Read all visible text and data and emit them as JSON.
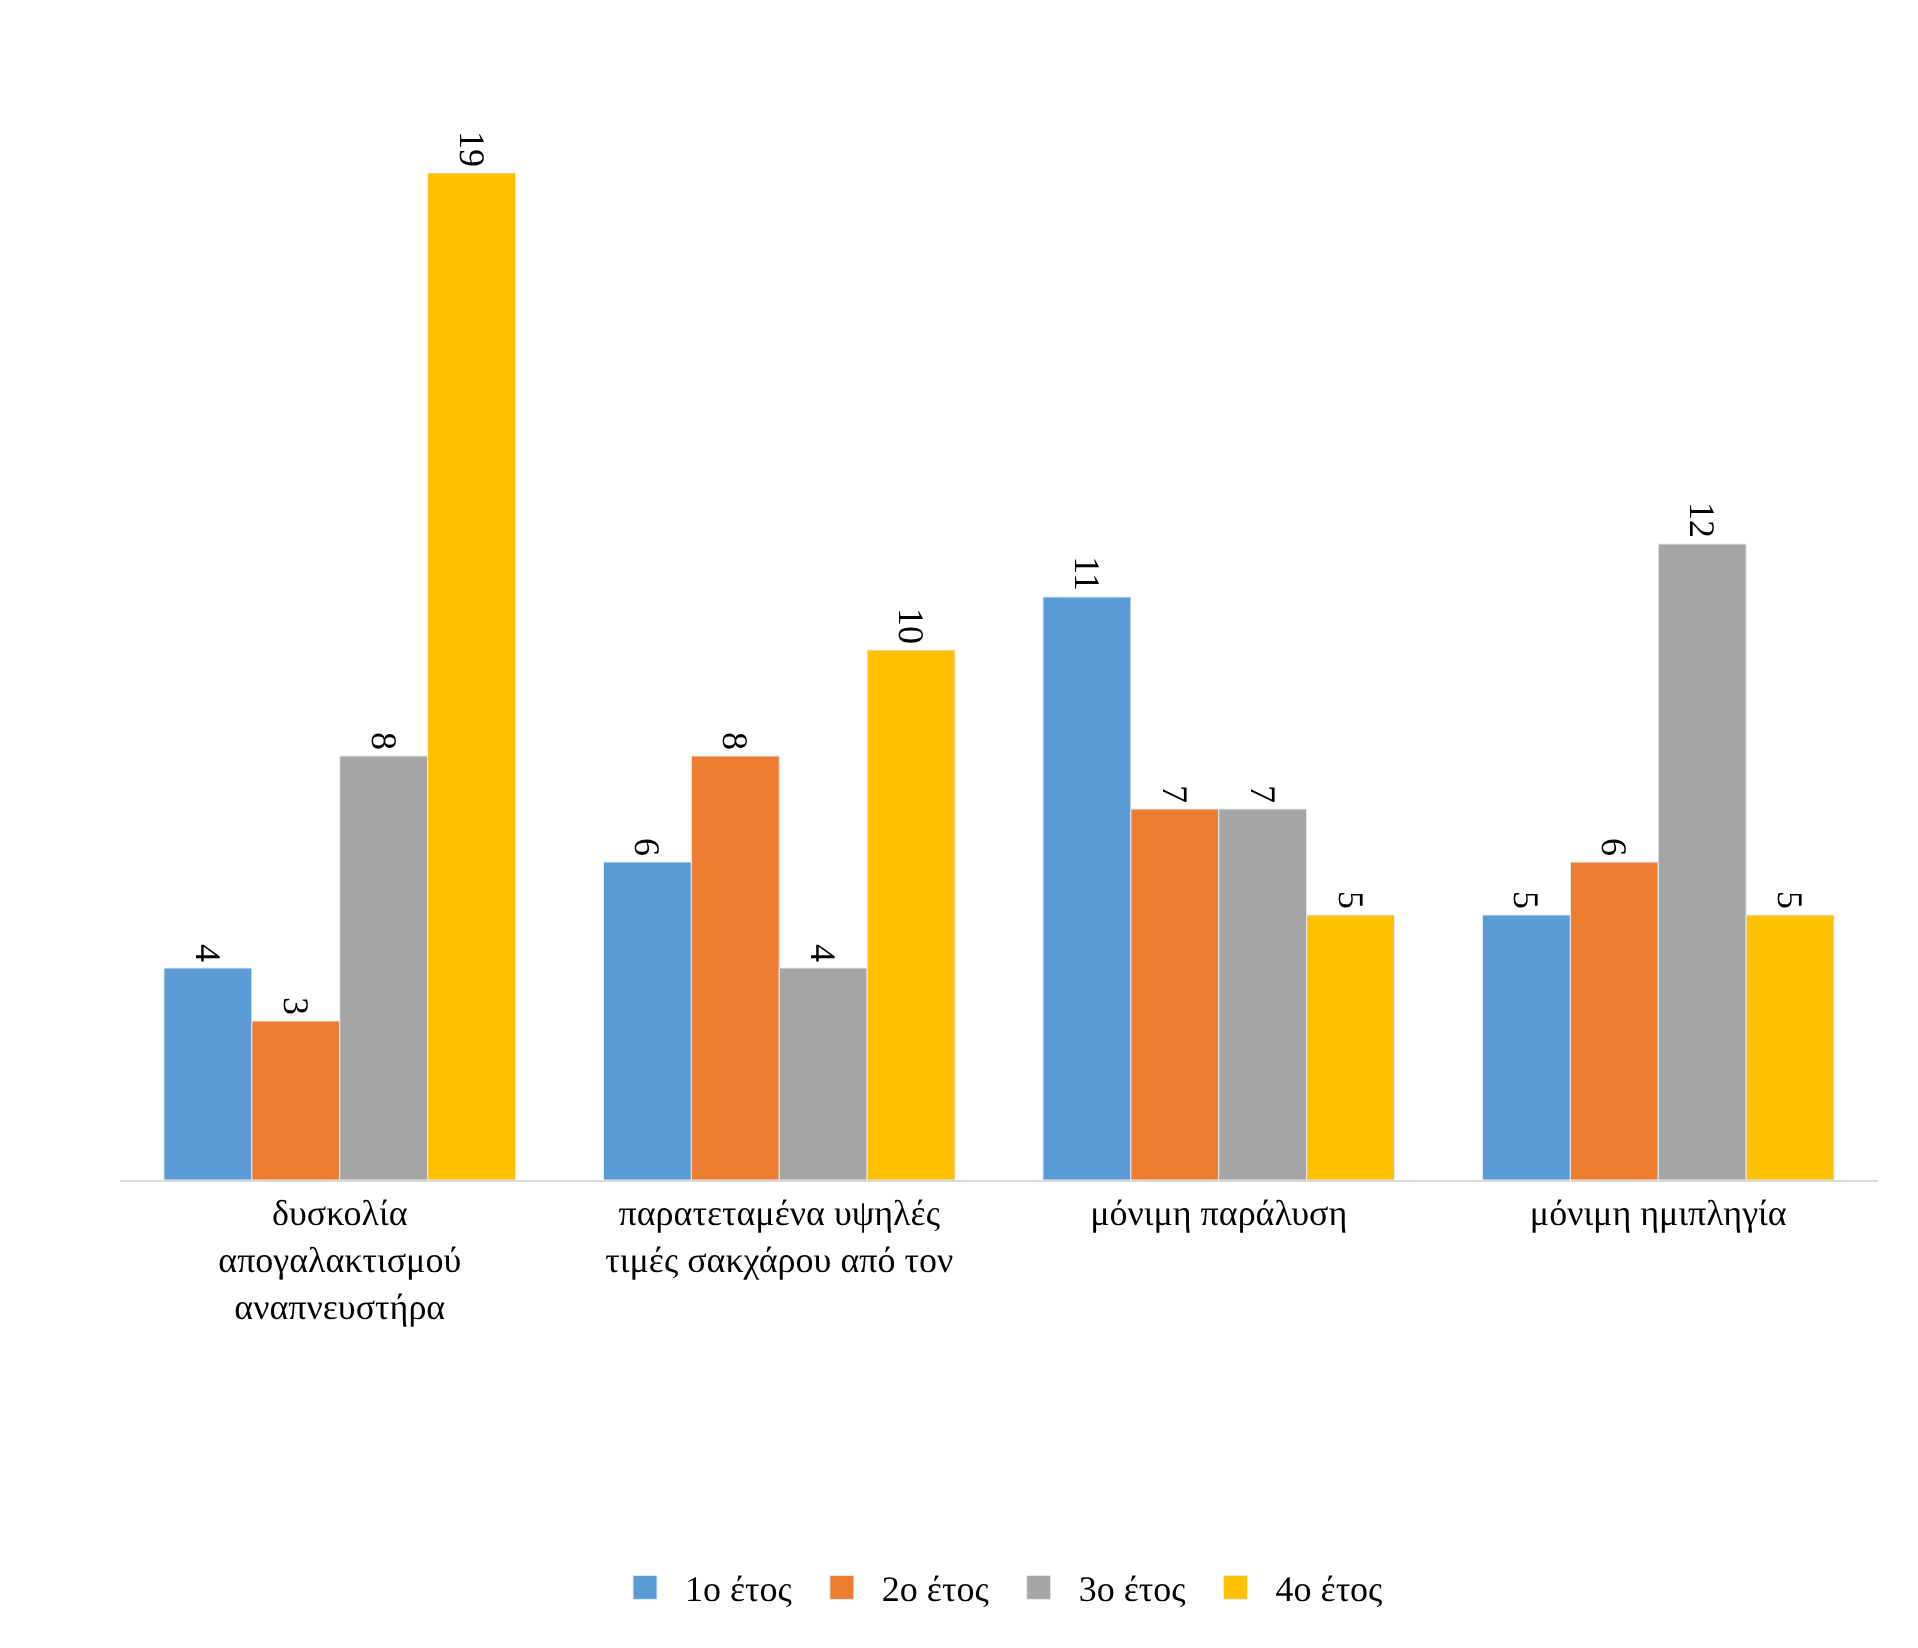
{
  "chart_data": {
    "type": "bar",
    "categories": [
      "δυσκολία απογαλακτισμού αναπνευστήρα",
      "παρατεταμένα υψηλές τιμές σακχάρου από τον",
      "μόνιμη παράλυση",
      "μόνιμη ημιπληγία"
    ],
    "series": [
      {
        "name": "1ο έτος",
        "color": "#5b9bd5",
        "values": [
          4,
          6,
          11,
          5
        ]
      },
      {
        "name": "2ο έτος",
        "color": "#ed7d31",
        "values": [
          3,
          8,
          7,
          6
        ]
      },
      {
        "name": "3ο έτος",
        "color": "#a5a5a5",
        "values": [
          8,
          4,
          7,
          12
        ]
      },
      {
        "name": "4ο έτος",
        "color": "#ffc000",
        "values": [
          19,
          10,
          5,
          5
        ]
      }
    ],
    "data_labels": true,
    "legend": "bottom"
  }
}
